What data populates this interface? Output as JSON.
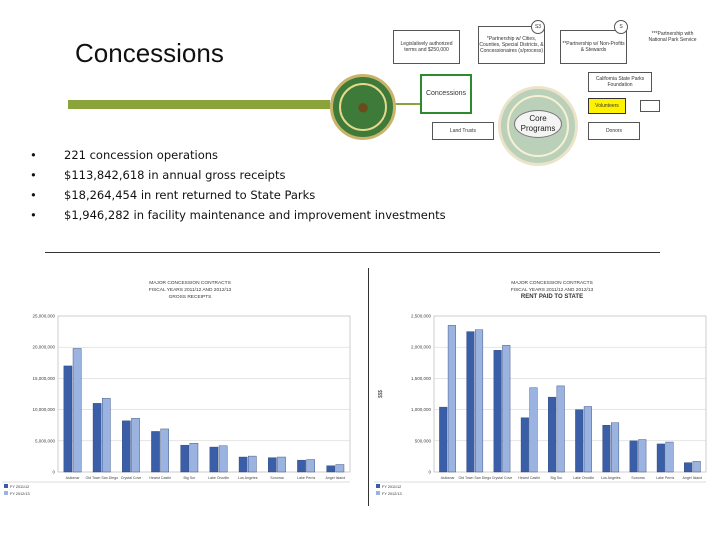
{
  "slide": {
    "title": "Concessions",
    "bullets": [
      "221 concession operations",
      "$113,842,618 in annual gross receipts",
      "$18,264,454 in rent returned to State Parks",
      "$1,946,282 in facility maintenance and improvement investments"
    ],
    "bullet_glyph": "•",
    "colors": {
      "accent": "#8aa33b",
      "bar_dark": "#3a5fa8",
      "bar_light": "#9ab3e0"
    }
  },
  "diagram": {
    "concessions_label": "Concessions",
    "core_label": "Core Programs",
    "boxes": [
      "Legislatively authorized terms and $250,000",
      "*Partnership w/ Cities, Counties, Special Districts, & Concessionaires (s/process)",
      "**Partnership w/ Non-Profits & Stewards",
      "***Partnership with National Park Service",
      "California State Parks Foundation",
      "Volunteers",
      "Land Trusts",
      "Donors"
    ],
    "badges": [
      "S3",
      "S"
    ]
  },
  "charts": [
    {
      "title_lines": [
        "MAJOR CONCESSION CONTRACTS",
        "FISCAL YEARS 2011/12 AND 2012/13",
        "GROSS RECEIPTS"
      ],
      "yticks": [
        "25,000,000",
        "20,000,000",
        "15,000,000",
        "10,000,000",
        "5,000,000",
        "0"
      ],
      "legend": [
        "FY 2011/12",
        "FY 2012/13"
      ]
    },
    {
      "title_lines": [
        "MAJOR CONCESSION CONTRACTS",
        "FISCAL YEARS 2011/12 AND 2012/13",
        "RENT PAID TO STATE"
      ],
      "yticks": [
        "2,500,000",
        "2,000,000",
        "1,500,000",
        "1,000,000",
        "500,000",
        "0"
      ],
      "ylabel": "$$$",
      "legend": [
        "FY 2011/12",
        "FY 2012/13"
      ]
    }
  ],
  "chart_data": [
    {
      "type": "bar",
      "ylim": [
        0,
        25000000
      ],
      "categories": [
        "Asilomar",
        "Old Town San Diego",
        "Crystal Cove",
        "Hearst Castle",
        "Big Sur",
        "Lake Oroville",
        "Los Angeles",
        "Sonoma",
        "Lake Perris",
        "Angel Island"
      ],
      "series": [
        {
          "values": [
            17000000,
            11000000,
            8200000,
            6500000,
            4300000,
            4000000,
            2400000,
            2300000,
            1900000,
            1000000
          ]
        },
        {
          "values": [
            19800000,
            11800000,
            8600000,
            6900000,
            4600000,
            4200000,
            2550000,
            2400000,
            2000000,
            1200000
          ]
        }
      ]
    },
    {
      "type": "bar",
      "ylim": [
        0,
        2500000
      ],
      "categories": [
        "Asilomar",
        "Old Town San Diego",
        "Crystal Cove",
        "Hearst Castle",
        "Big Sur",
        "Lake Oroville",
        "Los Angeles",
        "Sonoma",
        "Lake Perris",
        "Angel Island"
      ],
      "series": [
        {
          "values": [
            1040000,
            2250000,
            1950000,
            870000,
            1200000,
            1000000,
            750000,
            500000,
            450000,
            150000
          ]
        },
        {
          "values": [
            2350000,
            2280000,
            2030000,
            1350000,
            1380000,
            1050000,
            790000,
            520000,
            480000,
            170000
          ]
        }
      ]
    }
  ]
}
